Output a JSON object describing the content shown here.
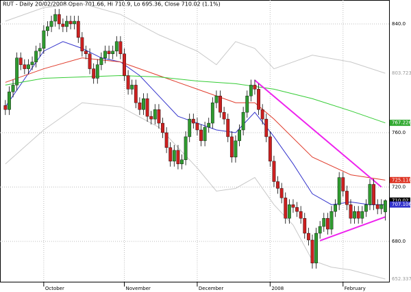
{
  "chart_data": {
    "type": "candlestick",
    "title": "RUT - Daily 20/02/2008 Open 701.66, Hi 710.9, Lo 695.36, Close 710.02 (1.1%)",
    "xlim": [
      -1.4,
      100
    ],
    "ylim": [
      649.8,
      857.6
    ],
    "xticks": [
      {
        "value": 10,
        "label": "October"
      },
      {
        "value": 31,
        "label": "November"
      },
      {
        "value": 50,
        "label": "December"
      },
      {
        "value": 69,
        "label": "2008"
      },
      {
        "value": 88,
        "label": "February"
      }
    ],
    "yticks": [
      {
        "value": 840,
        "label": "840.0"
      },
      {
        "value": 760,
        "label": "760.0"
      },
      {
        "value": 720,
        "label": "720.0"
      },
      {
        "value": 680,
        "label": "680.0"
      }
    ],
    "grid": true,
    "up_color": "#2f9a2f",
    "down_color": "#cc2020",
    "open": [
      780,
      777,
      790,
      795,
      815,
      810,
      807,
      810,
      812,
      820,
      822,
      835,
      838,
      842,
      847,
      840,
      838,
      842,
      840,
      842,
      830,
      820,
      818,
      807,
      800,
      810,
      815,
      820,
      818,
      820,
      827,
      818,
      802,
      792,
      795,
      782,
      777,
      785,
      772,
      770,
      777,
      767,
      760,
      749,
      739,
      747,
      737,
      740,
      757,
      770,
      767,
      762,
      754,
      764,
      767,
      782,
      787,
      775,
      770,
      757,
      742,
      754,
      762,
      775,
      787,
      795,
      792,
      777,
      770,
      757,
      739,
      724,
      719,
      712,
      697,
      707,
      705,
      702,
      697,
      686,
      681,
      664,
      686,
      691,
      697,
      689,
      702,
      707,
      727,
      717,
      707,
      697,
      702,
      697,
      702,
      707,
      722,
      707,
      704,
      701.66
    ],
    "high": [
      784,
      794,
      799,
      819,
      819,
      814,
      814,
      816,
      824,
      826,
      839,
      842,
      846,
      851,
      851,
      844,
      846,
      846,
      846,
      846,
      834,
      824,
      822,
      811,
      814,
      819,
      824,
      824,
      824,
      831,
      831,
      822,
      806,
      799,
      799,
      786,
      789,
      789,
      776,
      781,
      781,
      771,
      764,
      753,
      751,
      751,
      744,
      761,
      774,
      774,
      771,
      766,
      768,
      771,
      786,
      791,
      791,
      779,
      774,
      761,
      758,
      766,
      779,
      791,
      799,
      799,
      796,
      781,
      774,
      761,
      743,
      728,
      723,
      716,
      711,
      711,
      709,
      706,
      701,
      690,
      685,
      690,
      695,
      701,
      701,
      706,
      711,
      731,
      731,
      721,
      711,
      706,
      706,
      706,
      711,
      726,
      726,
      711,
      711,
      710.9
    ],
    "low": [
      773,
      773,
      786,
      791,
      806,
      803,
      803,
      806,
      808,
      816,
      818,
      831,
      834,
      838,
      836,
      834,
      834,
      836,
      836,
      826,
      816,
      814,
      803,
      796,
      796,
      806,
      811,
      814,
      814,
      816,
      814,
      798,
      788,
      788,
      778,
      773,
      773,
      768,
      766,
      766,
      763,
      756,
      745,
      735,
      735,
      733,
      733,
      736,
      753,
      763,
      758,
      750,
      750,
      760,
      763,
      778,
      771,
      766,
      753,
      738,
      738,
      750,
      758,
      771,
      783,
      788,
      773,
      766,
      753,
      735,
      720,
      715,
      708,
      693,
      693,
      701,
      698,
      693,
      682,
      677,
      660,
      660,
      682,
      687,
      685,
      685,
      698,
      703,
      713,
      703,
      693,
      693,
      693,
      693,
      698,
      703,
      703,
      700,
      700,
      695.36
    ],
    "close": [
      777,
      790,
      795,
      815,
      810,
      807,
      810,
      812,
      820,
      822,
      835,
      838,
      842,
      847,
      840,
      838,
      842,
      840,
      842,
      830,
      820,
      818,
      807,
      800,
      810,
      815,
      820,
      818,
      820,
      827,
      818,
      802,
      792,
      795,
      782,
      777,
      785,
      772,
      770,
      777,
      767,
      760,
      749,
      739,
      747,
      737,
      740,
      757,
      770,
      767,
      762,
      754,
      764,
      767,
      782,
      787,
      775,
      770,
      757,
      742,
      754,
      762,
      775,
      787,
      795,
      792,
      777,
      770,
      757,
      739,
      724,
      719,
      712,
      697,
      707,
      705,
      702,
      697,
      686,
      681,
      664,
      686,
      691,
      697,
      689,
      702,
      707,
      727,
      717,
      707,
      697,
      702,
      697,
      702,
      707,
      722,
      707,
      704,
      707,
      710.02
    ],
    "lines": [
      {
        "color": "#3333cc",
        "x": [
          0,
          10,
          15,
          20,
          25,
          30,
          35,
          40,
          45,
          50,
          55,
          60,
          65,
          70,
          75,
          80,
          85,
          90,
          95,
          99
        ],
        "values": [
          779,
          820,
          827,
          822,
          815,
          812,
          802,
          787,
          772,
          767,
          762,
          760,
          775,
          757,
          737,
          715,
          707,
          709,
          707,
          707.1
        ]
      },
      {
        "color": "#e03a2a",
        "x": [
          0,
          10,
          20,
          30,
          40,
          50,
          60,
          65,
          70,
          80,
          90,
          99
        ],
        "values": [
          797,
          807,
          815,
          812,
          802,
          792,
          782,
          782,
          770,
          742,
          729,
          725.1
        ]
      },
      {
        "color": "#33cc33",
        "x": [
          0,
          10,
          20,
          30,
          40,
          50,
          60,
          70,
          80,
          90,
          99
        ],
        "values": [
          795,
          800,
          801,
          802,
          801,
          798,
          796,
          792,
          785,
          776,
          767.2
        ]
      },
      {
        "color": "#c8c8c8",
        "x": [
          0,
          10,
          20,
          30,
          40,
          50,
          55,
          60,
          65,
          70,
          80,
          90,
          99
        ],
        "values": [
          842,
          852,
          855,
          847,
          832,
          820,
          810,
          827,
          822,
          807,
          817,
          812,
          803.7
        ]
      },
      {
        "color": "#c8c8c8",
        "x": [
          0,
          10,
          20,
          30,
          40,
          50,
          55,
          60,
          65,
          70,
          75,
          80,
          85,
          90,
          99
        ],
        "values": [
          737,
          762,
          782,
          779,
          764,
          734,
          717,
          719,
          727,
          707,
          692,
          666,
          661,
          659,
          652.3
        ]
      },
      {
        "color": "#ee22ee",
        "x": [
          65,
          98
        ],
        "values": [
          798.6,
          720
        ]
      },
      {
        "color": "#ee22ee",
        "x": [
          82,
          99
        ],
        "values": [
          680.5,
          698
        ]
      }
    ],
    "badges": [
      {
        "value": 803.723,
        "label": "803.723",
        "color": "#999999"
      },
      {
        "value": 767.226,
        "label": "767.226",
        "color": "#33aa33"
      },
      {
        "value": 725.118,
        "label": "725.118",
        "color": "#dd3322"
      },
      {
        "value": 710.02,
        "label": "710.02",
        "color": "#000000"
      },
      {
        "value": 707.106,
        "label": "707.106",
        "color": "#3333cc"
      },
      {
        "value": 652.337,
        "label": "652.337",
        "color": "#999999"
      }
    ]
  }
}
